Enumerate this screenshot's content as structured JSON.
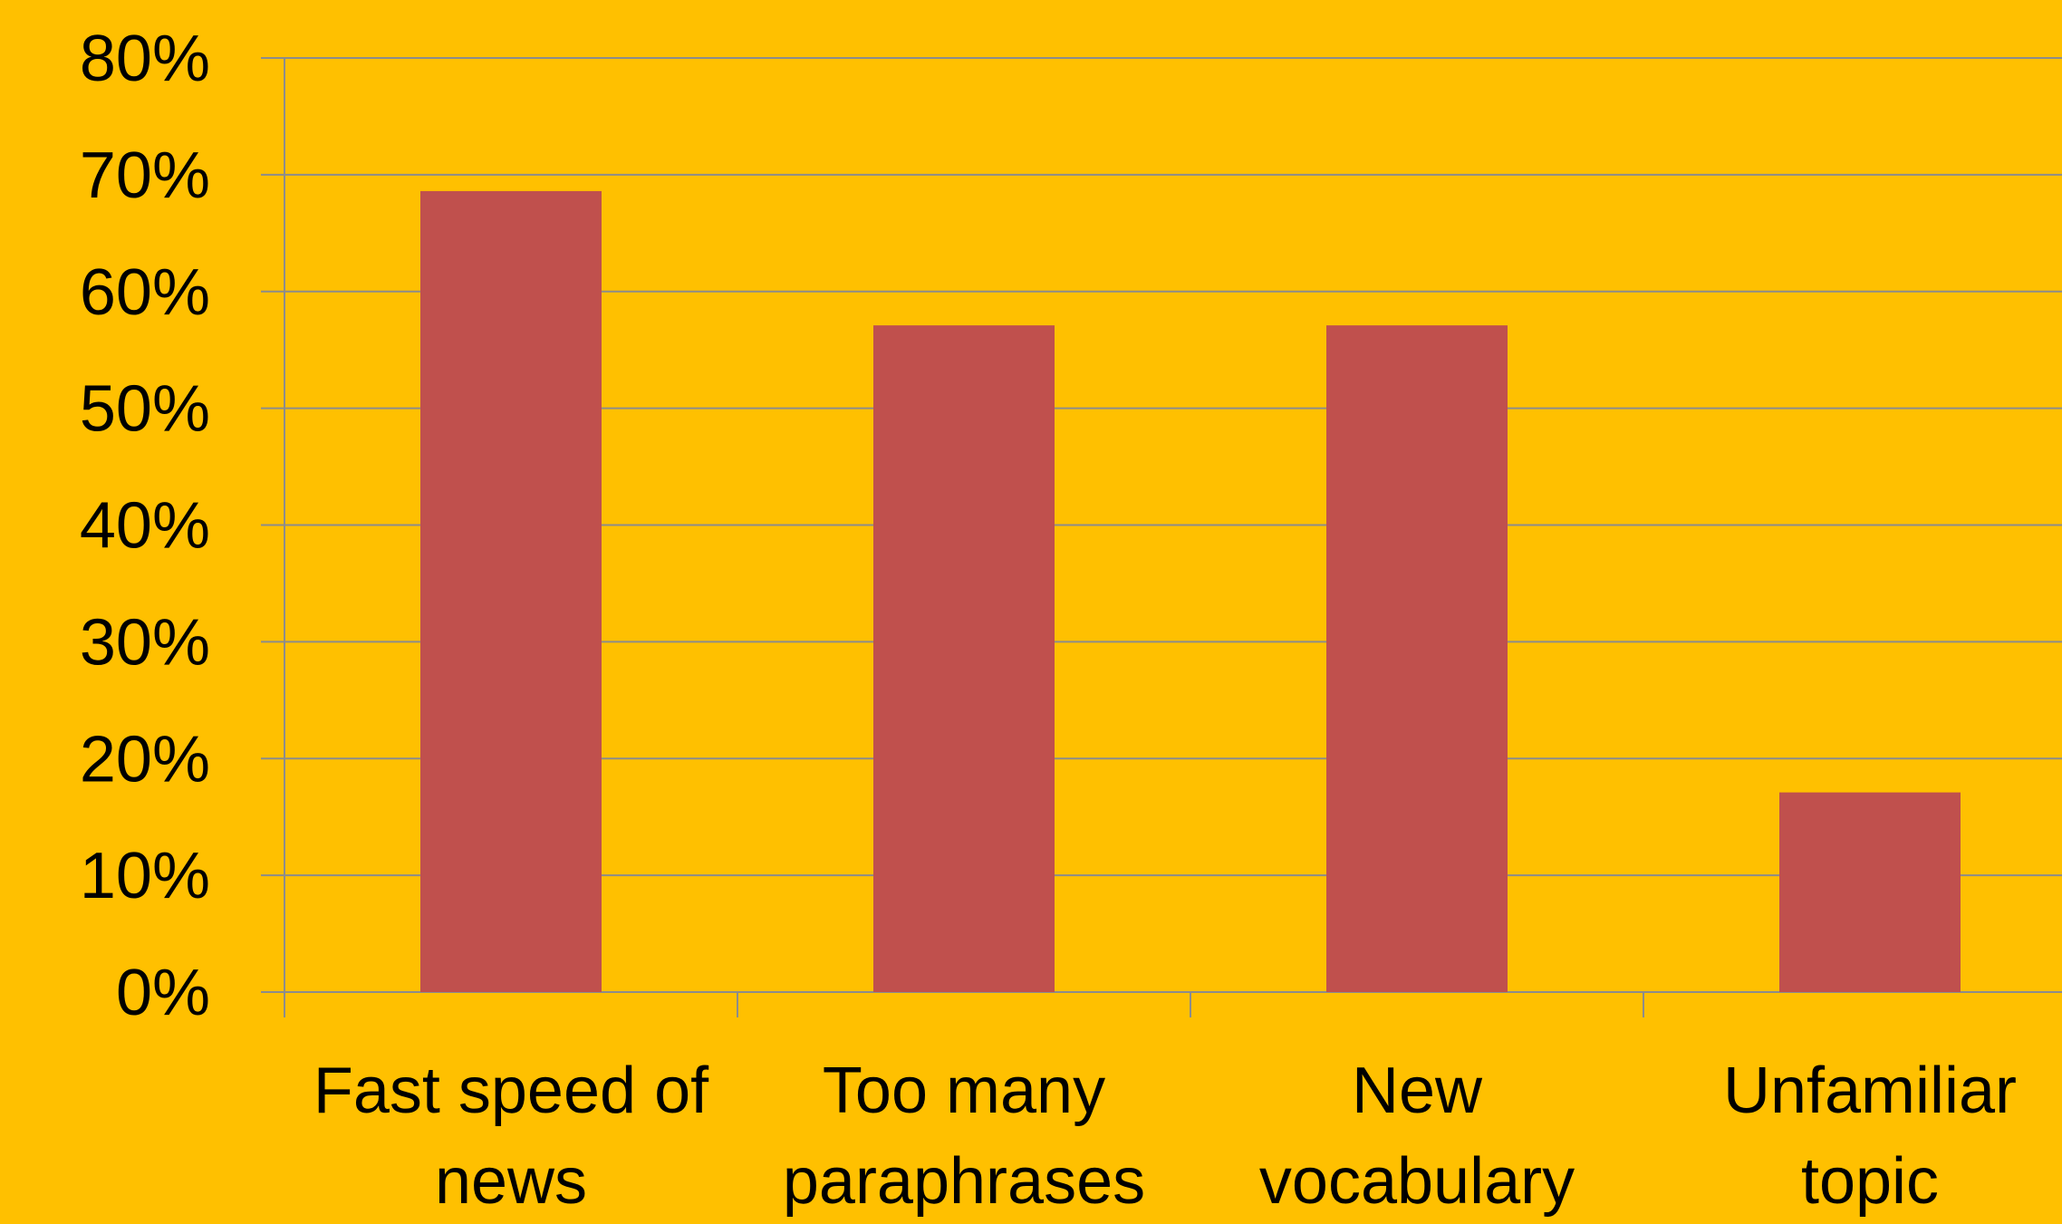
{
  "colors": {
    "background": "#FFC000",
    "bar": "#C0504D",
    "gridline": "#8C8C8C",
    "axis": "#8C8C8C",
    "text": "#000000"
  },
  "chart_data": {
    "type": "bar",
    "title": "",
    "xlabel": "",
    "ylabel": "",
    "categories": [
      "Fast speed of news",
      "Too many paraphrases",
      "New vocabulary",
      "Unfamiliar topic"
    ],
    "category_label_lines": [
      [
        "Fast speed of",
        "news"
      ],
      [
        "Too many",
        "paraphrases"
      ],
      [
        "New",
        "vocabulary"
      ],
      [
        "Unfamiliar",
        "topic"
      ]
    ],
    "values": [
      0.686,
      0.571,
      0.571,
      0.171
    ],
    "ylim": [
      0,
      0.8
    ],
    "yticks": [
      0,
      0.1,
      0.2,
      0.3,
      0.4,
      0.5,
      0.6,
      0.7,
      0.8
    ],
    "ytick_labels": [
      "0%",
      "10%",
      "20%",
      "30%",
      "40%",
      "50%",
      "60%",
      "70%",
      "80%"
    ],
    "grid": true,
    "legend": "none"
  }
}
